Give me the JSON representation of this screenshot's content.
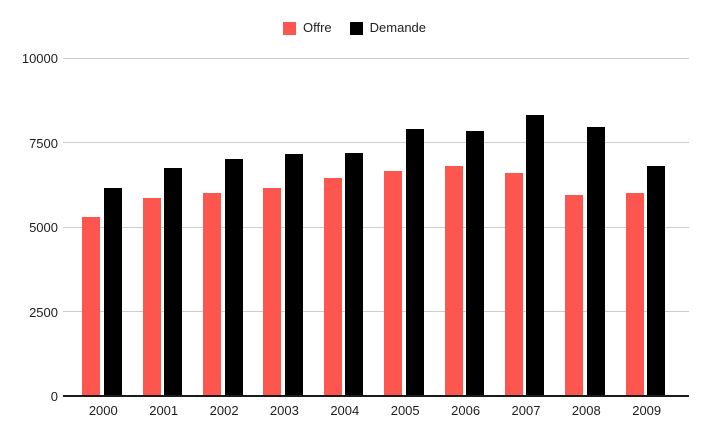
{
  "chart_data": {
    "type": "bar",
    "title": "",
    "xlabel": "",
    "ylabel": "",
    "categories": [
      "2000",
      "2001",
      "2002",
      "2003",
      "2004",
      "2005",
      "2006",
      "2007",
      "2008",
      "2009"
    ],
    "series": [
      {
        "name": "Offre",
        "color": "#FD564F",
        "values": [
          5300,
          5850,
          6000,
          6150,
          6450,
          6650,
          6800,
          6600,
          5950,
          6000
        ]
      },
      {
        "name": "Demande",
        "color": "#000000",
        "values": [
          6150,
          6750,
          7000,
          7150,
          7200,
          7900,
          7850,
          8300,
          7950,
          6800
        ]
      }
    ],
    "ylim": [
      0,
      10000
    ],
    "yticks": [
      0,
      2500,
      5000,
      7500,
      10000
    ],
    "grid": "horizontal",
    "legend_position": "top-center",
    "background": "#ffffff"
  },
  "legend": {
    "items": [
      {
        "label": "Offre"
      },
      {
        "label": "Demande"
      }
    ]
  },
  "colors": {
    "gridline": "#cccccc",
    "axis_line": "#1a1a1a",
    "text": "#1f1f1f",
    "background": "#ffffff"
  }
}
